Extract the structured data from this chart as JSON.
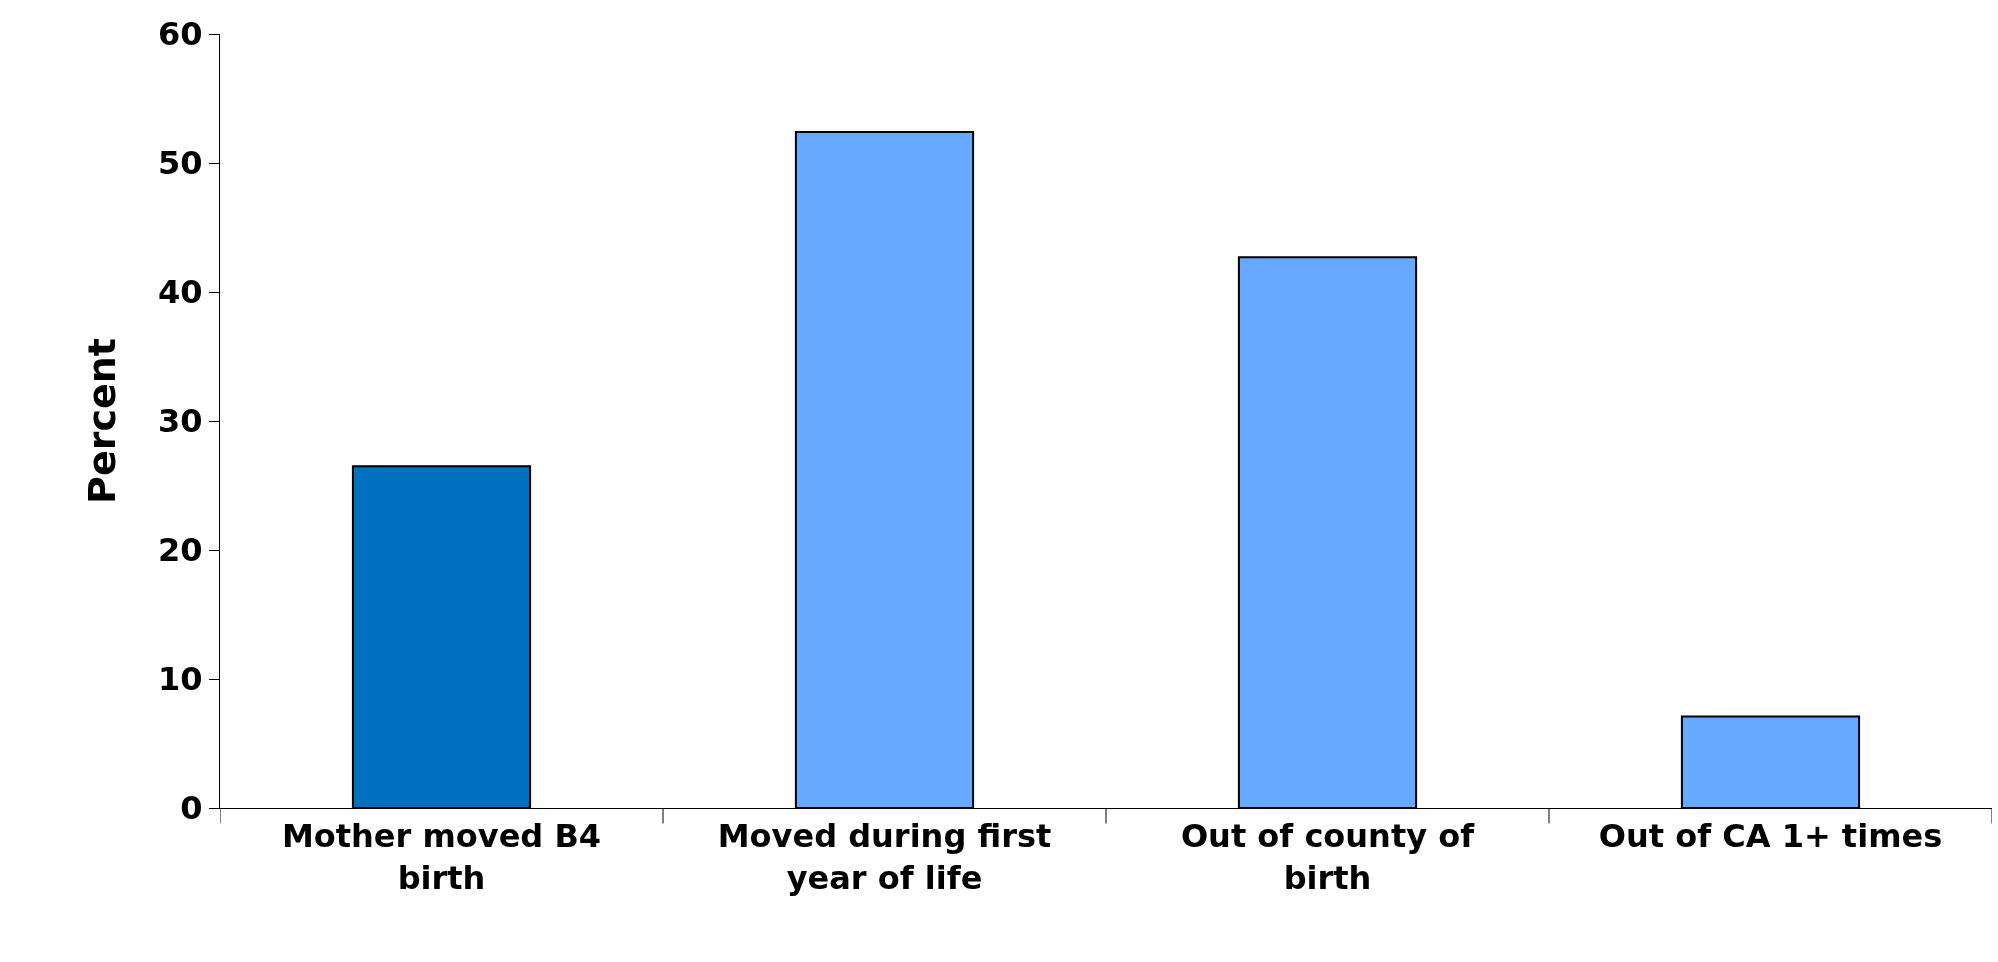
{
  "chart_data": {
    "type": "bar",
    "ylabel": "Percent",
    "categories": [
      "Mother moved B4 birth",
      "Moved during first year of life",
      "Out of county of birth",
      "Out of CA 1+ times"
    ],
    "values": [
      26.5,
      52.4,
      42.7,
      7.1
    ],
    "colors": [
      "#0070c0",
      "#66aaff",
      "#66aaff",
      "#66aaff"
    ],
    "ylim": [
      0,
      60
    ],
    "yticks": [
      0,
      10,
      20,
      30,
      40,
      50,
      60
    ]
  }
}
